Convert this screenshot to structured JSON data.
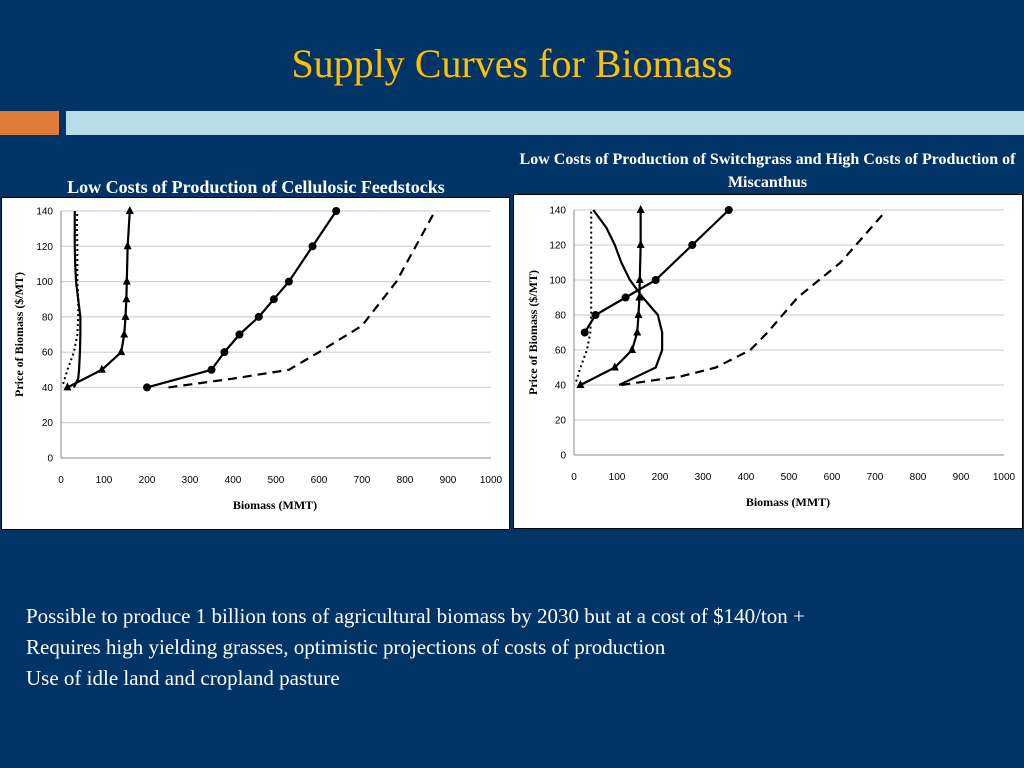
{
  "slide": {
    "title": "Supply Curves for Biomass",
    "accent_colors": {
      "background": "#003366",
      "title": "#FFC000",
      "bar_left": "#E07B39",
      "bar_right": "#B7DDE8"
    },
    "bullets": [
      "Possible to produce 1 billion tons of agricultural biomass by 2030 but at a cost of $140/ton +",
      "Requires high yielding grasses, optimistic projections of costs of production",
      "Use of idle land and cropland pasture"
    ]
  },
  "chart_data": [
    {
      "type": "line",
      "title": "Low Costs of Production of Cellulosic Feedstocks",
      "xlabel": "Biomass (MMT)",
      "ylabel": "Price of Biomass ($/MT)",
      "xlim": [
        0,
        1000
      ],
      "ylim": [
        0,
        140
      ],
      "xticks": [
        "0",
        "100",
        "200",
        "300",
        "400",
        "500",
        "600",
        "700",
        "800",
        "900",
        "1000"
      ],
      "yticks": [
        "0",
        "20",
        "40",
        "60",
        "80",
        "100",
        "120",
        "140"
      ],
      "grid": "horizontal",
      "legend": "none",
      "series": [
        {
          "style": "dotted",
          "marker": "none",
          "points": [
            [
              5,
              42
            ],
            [
              15,
              50
            ],
            [
              30,
              60
            ],
            [
              38,
              70
            ],
            [
              40,
              80
            ],
            [
              40,
              90
            ],
            [
              38,
              100
            ],
            [
              38,
              110
            ],
            [
              38,
              120
            ],
            [
              37,
              130
            ],
            [
              38,
              140
            ]
          ]
        },
        {
          "style": "solid",
          "marker": "none",
          "points": [
            [
              30,
              40
            ],
            [
              40,
              45
            ],
            [
              42,
              50
            ],
            [
              44,
              60
            ],
            [
              45,
              70
            ],
            [
              45,
              80
            ],
            [
              40,
              90
            ],
            [
              35,
              100
            ],
            [
              33,
              110
            ],
            [
              32,
              120
            ],
            [
              32,
              130
            ],
            [
              32,
              140
            ]
          ]
        },
        {
          "style": "solid",
          "marker": "triangle",
          "points": [
            [
              15,
              40
            ],
            [
              95,
              50
            ],
            [
              140,
              60
            ],
            [
              147,
              70
            ],
            [
              150,
              80
            ],
            [
              152,
              90
            ],
            [
              153,
              100
            ],
            [
              155,
              120
            ],
            [
              160,
              140
            ]
          ]
        },
        {
          "style": "solid",
          "marker": "circle",
          "points": [
            [
              200,
              40
            ],
            [
              350,
              50
            ],
            [
              380,
              60
            ],
            [
              415,
              70
            ],
            [
              460,
              80
            ],
            [
              495,
              90
            ],
            [
              530,
              100
            ],
            [
              585,
              120
            ],
            [
              640,
              140
            ]
          ]
        },
        {
          "style": "dashed",
          "marker": "none",
          "points": [
            [
              250,
              40
            ],
            [
              400,
              45
            ],
            [
              530,
              50
            ],
            [
              600,
              60
            ],
            [
              700,
              75
            ],
            [
              780,
              100
            ],
            [
              870,
              140
            ]
          ]
        }
      ]
    },
    {
      "type": "line",
      "title": "Low Costs of Production of Switchgrass and High Costs of Production of Miscanthus",
      "xlabel": "Biomass (MMT)",
      "ylabel": "Price of Biomass ($/MT)",
      "xlim": [
        0,
        1000
      ],
      "ylim": [
        0,
        140
      ],
      "xticks": [
        "0",
        "100",
        "200",
        "300",
        "400",
        "500",
        "600",
        "700",
        "800",
        "900",
        "1000"
      ],
      "yticks": [
        "0",
        "20",
        "40",
        "60",
        "80",
        "100",
        "120",
        "140"
      ],
      "grid": "horizontal",
      "legend": "none",
      "series": [
        {
          "style": "dotted",
          "marker": "none",
          "points": [
            [
              5,
              42
            ],
            [
              15,
              50
            ],
            [
              30,
              60
            ],
            [
              38,
              70
            ],
            [
              40,
              80
            ],
            [
              40,
              90
            ],
            [
              40,
              100
            ],
            [
              40,
              110
            ],
            [
              40,
              120
            ],
            [
              40,
              130
            ],
            [
              40,
              140
            ]
          ]
        },
        {
          "style": "solid",
          "marker": "none",
          "points": [
            [
              105,
              40
            ],
            [
              190,
              50
            ],
            [
              205,
              60
            ],
            [
              205,
              70
            ],
            [
              195,
              80
            ],
            [
              160,
              90
            ],
            [
              130,
              100
            ],
            [
              110,
              110
            ],
            [
              95,
              120
            ],
            [
              75,
              130
            ],
            [
              45,
              140
            ]
          ]
        },
        {
          "style": "solid",
          "marker": "triangle",
          "points": [
            [
              15,
              40
            ],
            [
              95,
              50
            ],
            [
              135,
              60
            ],
            [
              147,
              70
            ],
            [
              150,
              80
            ],
            [
              152,
              90
            ],
            [
              153,
              100
            ],
            [
              155,
              120
            ],
            [
              155,
              140
            ]
          ]
        },
        {
          "style": "solid",
          "marker": "circle",
          "points": [
            [
              25,
              70
            ],
            [
              50,
              80
            ],
            [
              120,
              90
            ],
            [
              190,
              100
            ],
            [
              275,
              120
            ],
            [
              360,
              140
            ]
          ]
        },
        {
          "style": "dashed",
          "marker": "none",
          "points": [
            [
              110,
              40
            ],
            [
              250,
              45
            ],
            [
              330,
              50
            ],
            [
              410,
              60
            ],
            [
              450,
              70
            ],
            [
              520,
              90
            ],
            [
              620,
              110
            ],
            [
              720,
              138
            ]
          ]
        }
      ]
    }
  ]
}
